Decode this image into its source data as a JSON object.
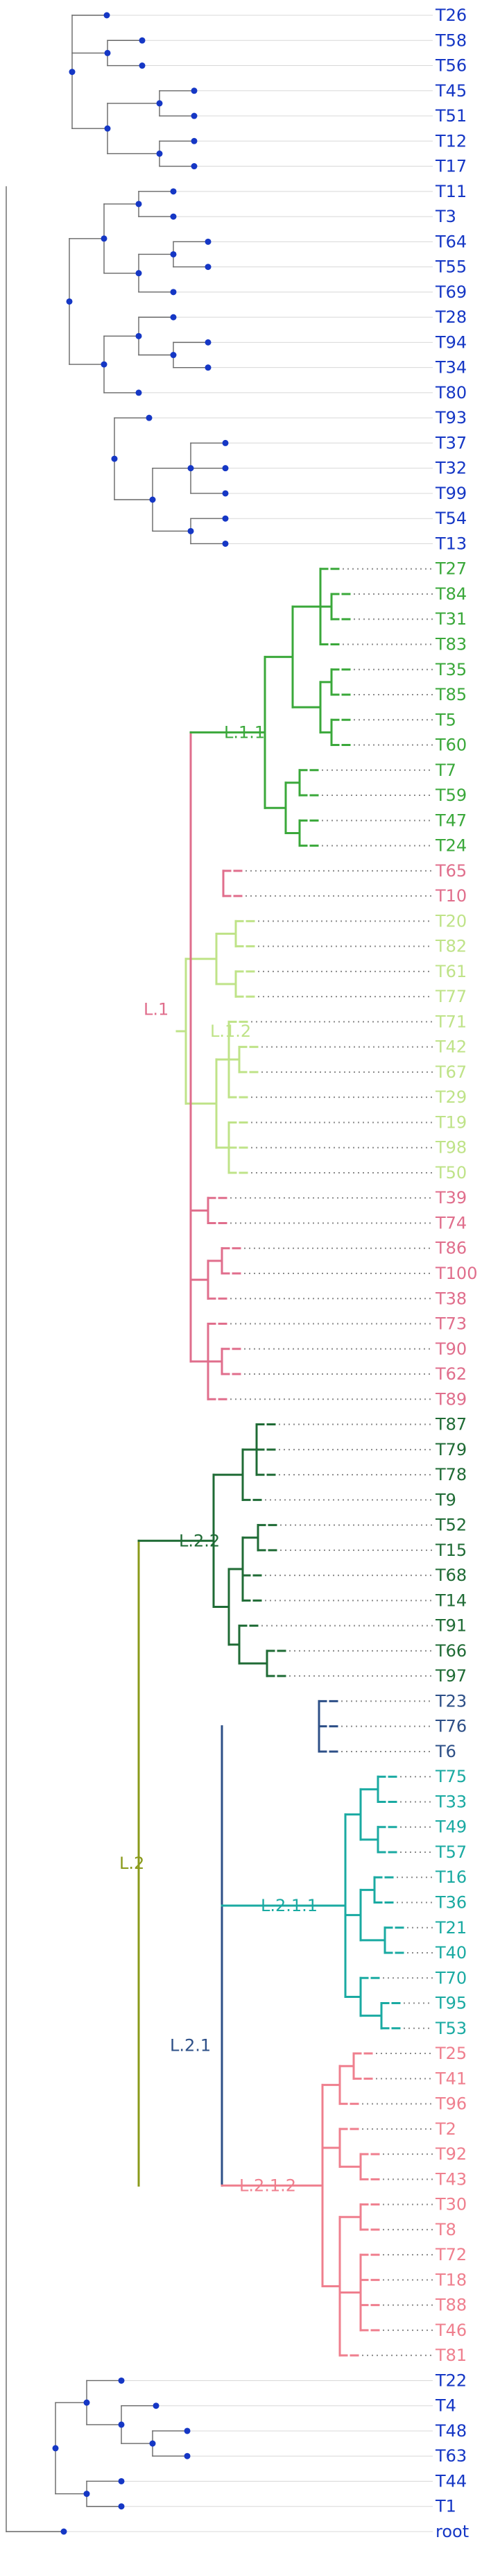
{
  "colors": {
    "base": "#666666",
    "tip_blue": "#1537c5",
    "node_dot": "#1537c5",
    "L": "#8a9a1a",
    "L.1": "#e06e8c",
    "L.1.1": "#3aa83a",
    "L.1.2": "#bfe388",
    "L.2": "#8a9a1a",
    "L.2.1": "#2d4f87",
    "L.2.2": "#1f6b35",
    "L.2.1.1": "#1aaaa2",
    "L.2.1.2": "#ef7f8e"
  },
  "clade_labels": {
    "L.1": "L.1",
    "L.1.1": "L.1.1",
    "L.1.2": "L.1.2",
    "L.2": "L.2",
    "L.2.1": "L.2.1",
    "L.2.2": "L.2.2",
    "L.2.1.1": "L.2.1.1",
    "L.2.1.2": "L.2.1.2"
  },
  "tips": [
    {
      "label": "T26",
      "clade": "none"
    },
    {
      "label": "T58",
      "clade": "none"
    },
    {
      "label": "T56",
      "clade": "none"
    },
    {
      "label": "T45",
      "clade": "none"
    },
    {
      "label": "T51",
      "clade": "none"
    },
    {
      "label": "T12",
      "clade": "none"
    },
    {
      "label": "T17",
      "clade": "none"
    },
    {
      "label": "T11",
      "clade": "none"
    },
    {
      "label": "T3",
      "clade": "none"
    },
    {
      "label": "T64",
      "clade": "none"
    },
    {
      "label": "T55",
      "clade": "none"
    },
    {
      "label": "T69",
      "clade": "none"
    },
    {
      "label": "T28",
      "clade": "none"
    },
    {
      "label": "T94",
      "clade": "none"
    },
    {
      "label": "T34",
      "clade": "none"
    },
    {
      "label": "T80",
      "clade": "none"
    },
    {
      "label": "T93",
      "clade": "none"
    },
    {
      "label": "T37",
      "clade": "none"
    },
    {
      "label": "T32",
      "clade": "none"
    },
    {
      "label": "T99",
      "clade": "none"
    },
    {
      "label": "T54",
      "clade": "none"
    },
    {
      "label": "T13",
      "clade": "none"
    },
    {
      "label": "T27",
      "clade": "L.1.1"
    },
    {
      "label": "T84",
      "clade": "L.1.1"
    },
    {
      "label": "T31",
      "clade": "L.1.1"
    },
    {
      "label": "T83",
      "clade": "L.1.1"
    },
    {
      "label": "T35",
      "clade": "L.1.1"
    },
    {
      "label": "T85",
      "clade": "L.1.1"
    },
    {
      "label": "T5",
      "clade": "L.1.1"
    },
    {
      "label": "T60",
      "clade": "L.1.1"
    },
    {
      "label": "T7",
      "clade": "L.1.1"
    },
    {
      "label": "T59",
      "clade": "L.1.1"
    },
    {
      "label": "T47",
      "clade": "L.1.1"
    },
    {
      "label": "T24",
      "clade": "L.1.1"
    },
    {
      "label": "T65",
      "clade": "L.1"
    },
    {
      "label": "T10",
      "clade": "L.1"
    },
    {
      "label": "T20",
      "clade": "L.1.2"
    },
    {
      "label": "T82",
      "clade": "L.1.2"
    },
    {
      "label": "T61",
      "clade": "L.1.2"
    },
    {
      "label": "T77",
      "clade": "L.1.2"
    },
    {
      "label": "T71",
      "clade": "L.1.2"
    },
    {
      "label": "T42",
      "clade": "L.1.2"
    },
    {
      "label": "T67",
      "clade": "L.1.2"
    },
    {
      "label": "T29",
      "clade": "L.1.2"
    },
    {
      "label": "T19",
      "clade": "L.1.2"
    },
    {
      "label": "T98",
      "clade": "L.1.2"
    },
    {
      "label": "T50",
      "clade": "L.1.2"
    },
    {
      "label": "T39",
      "clade": "L.1"
    },
    {
      "label": "T74",
      "clade": "L.1"
    },
    {
      "label": "T86",
      "clade": "L.1"
    },
    {
      "label": "T100",
      "clade": "L.1"
    },
    {
      "label": "T38",
      "clade": "L.1"
    },
    {
      "label": "T73",
      "clade": "L.1"
    },
    {
      "label": "T90",
      "clade": "L.1"
    },
    {
      "label": "T62",
      "clade": "L.1"
    },
    {
      "label": "T89",
      "clade": "L.1"
    },
    {
      "label": "T87",
      "clade": "L.2.2"
    },
    {
      "label": "T79",
      "clade": "L.2.2"
    },
    {
      "label": "T78",
      "clade": "L.2.2"
    },
    {
      "label": "T9",
      "clade": "L.2.2"
    },
    {
      "label": "T52",
      "clade": "L.2.2"
    },
    {
      "label": "T15",
      "clade": "L.2.2"
    },
    {
      "label": "T68",
      "clade": "L.2.2"
    },
    {
      "label": "T14",
      "clade": "L.2.2"
    },
    {
      "label": "T91",
      "clade": "L.2.2"
    },
    {
      "label": "T66",
      "clade": "L.2.2"
    },
    {
      "label": "T97",
      "clade": "L.2.2"
    },
    {
      "label": "T23",
      "clade": "L.2.1"
    },
    {
      "label": "T76",
      "clade": "L.2.1"
    },
    {
      "label": "T6",
      "clade": "L.2.1"
    },
    {
      "label": "T75",
      "clade": "L.2.1.1"
    },
    {
      "label": "T33",
      "clade": "L.2.1.1"
    },
    {
      "label": "T49",
      "clade": "L.2.1.1"
    },
    {
      "label": "T57",
      "clade": "L.2.1.1"
    },
    {
      "label": "T16",
      "clade": "L.2.1.1"
    },
    {
      "label": "T36",
      "clade": "L.2.1.1"
    },
    {
      "label": "T21",
      "clade": "L.2.1.1"
    },
    {
      "label": "T40",
      "clade": "L.2.1.1"
    },
    {
      "label": "T70",
      "clade": "L.2.1.1"
    },
    {
      "label": "T95",
      "clade": "L.2.1.1"
    },
    {
      "label": "T53",
      "clade": "L.2.1.1"
    },
    {
      "label": "T25",
      "clade": "L.2.1.2"
    },
    {
      "label": "T41",
      "clade": "L.2.1.2"
    },
    {
      "label": "T96",
      "clade": "L.2.1.2"
    },
    {
      "label": "T2",
      "clade": "L.2.1.2"
    },
    {
      "label": "T92",
      "clade": "L.2.1.2"
    },
    {
      "label": "T43",
      "clade": "L.2.1.2"
    },
    {
      "label": "T30",
      "clade": "L.2.1.2"
    },
    {
      "label": "T8",
      "clade": "L.2.1.2"
    },
    {
      "label": "T72",
      "clade": "L.2.1.2"
    },
    {
      "label": "T18",
      "clade": "L.2.1.2"
    },
    {
      "label": "T88",
      "clade": "L.2.1.2"
    },
    {
      "label": "T46",
      "clade": "L.2.1.2"
    },
    {
      "label": "T81",
      "clade": "L.2.1.2"
    },
    {
      "label": "T22",
      "clade": "none"
    },
    {
      "label": "T4",
      "clade": "none"
    },
    {
      "label": "T48",
      "clade": "none"
    },
    {
      "label": "T63",
      "clade": "none"
    },
    {
      "label": "T44",
      "clade": "none"
    },
    {
      "label": "T1",
      "clade": "none"
    },
    {
      "label": "root",
      "clade": "none"
    }
  ]
}
